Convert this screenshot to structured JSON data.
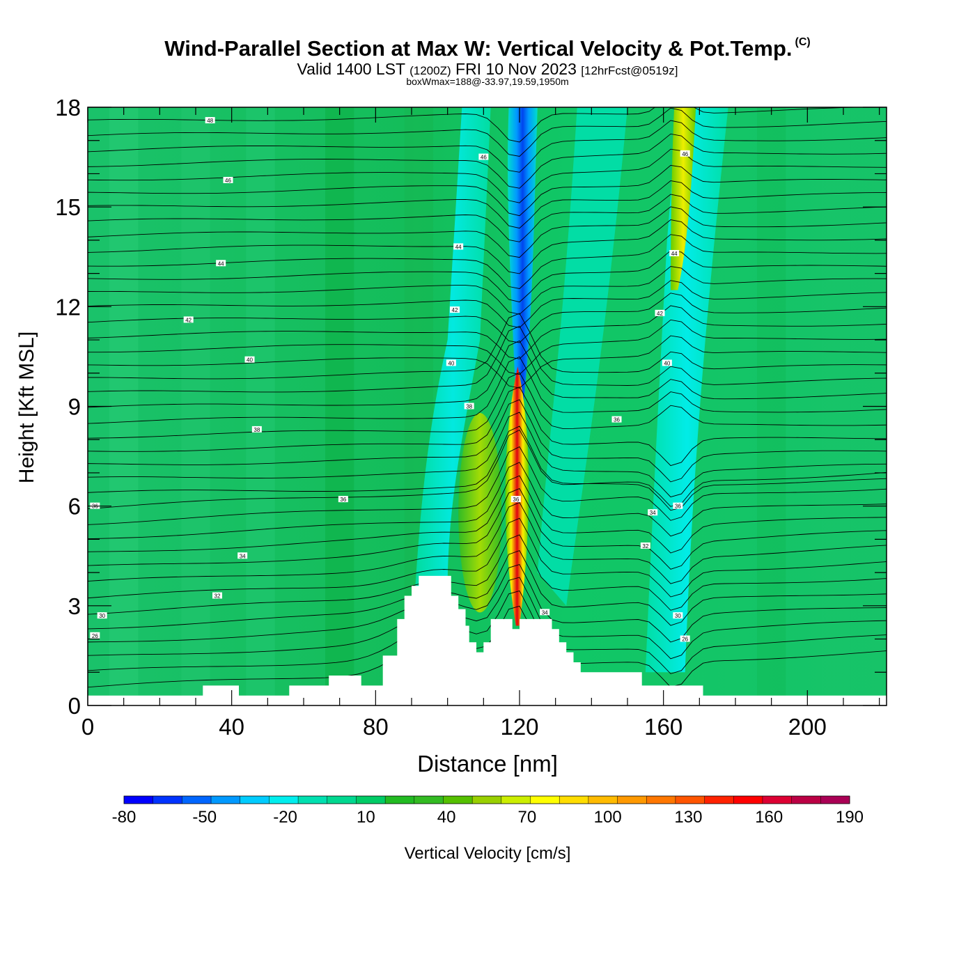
{
  "title": "Wind-Parallel Section at Max W: Vertical Velocity & Pot.Temp.",
  "copyright": "(C)",
  "subtitle": {
    "valid": "Valid 1400 LST",
    "utc": "(1200Z)",
    "date": "FRI 10 Nov 2023",
    "forecast": "[12hrFcst@0519z]"
  },
  "box_info": "boxWmax=188@-33.97,19.59,1950m",
  "chart_data": {
    "type": "heatmap",
    "xlabel": "Distance [nm]",
    "ylabel": "Height [Kft MSL]",
    "xlim": [
      0,
      222
    ],
    "ylim": [
      0,
      18
    ],
    "x_ticks": [
      0,
      40,
      80,
      120,
      160,
      200
    ],
    "y_ticks": [
      0,
      3,
      6,
      9,
      12,
      15,
      18
    ],
    "colorbar": {
      "label": "Vertical Velocity [cm/s]",
      "tick_values": [
        -80,
        -50,
        -20,
        10,
        40,
        70,
        100,
        130,
        160,
        190
      ],
      "colors": [
        "#0000ff",
        "#0033ff",
        "#0066ff",
        "#0099ff",
        "#00ccff",
        "#00eeee",
        "#00e0b0",
        "#00d890",
        "#00cc66",
        "#22bb22",
        "#33bb22",
        "#55c000",
        "#99d000",
        "#ccee00",
        "#ffff00",
        "#ffdd00",
        "#ffbb00",
        "#ff9900",
        "#ff7700",
        "#ff5500",
        "#ff2200",
        "#ff0000",
        "#dd0033",
        "#bb0044",
        "#aa0055"
      ]
    },
    "updraft_core": {
      "x": 119,
      "base_kft": 2.5,
      "top_kft": 10,
      "max_w": 188,
      "height_m": 1950
    },
    "downdraft_core": {
      "x": 120,
      "base_kft": 9,
      "top_kft": 18,
      "min_w": -80
    },
    "secondary_updraft": {
      "x": 165,
      "base_kft": 13,
      "top_kft": 18
    },
    "terrain": [
      [
        0,
        0.3
      ],
      [
        32,
        0.3
      ],
      [
        32,
        0.6
      ],
      [
        42,
        0.6
      ],
      [
        42,
        0.3
      ],
      [
        56,
        0.3
      ],
      [
        56,
        0.6
      ],
      [
        67,
        0.6
      ],
      [
        67,
        0.9
      ],
      [
        76,
        0.9
      ],
      [
        76,
        0.6
      ],
      [
        82,
        0.6
      ],
      [
        82,
        1.5
      ],
      [
        86,
        1.5
      ],
      [
        86,
        2.6
      ],
      [
        88,
        2.6
      ],
      [
        88,
        3.3
      ],
      [
        90,
        3.3
      ],
      [
        90,
        3.6
      ],
      [
        92,
        3.6
      ],
      [
        92,
        3.9
      ],
      [
        101,
        3.9
      ],
      [
        101,
        3.3
      ],
      [
        103,
        3.3
      ],
      [
        103,
        2.9
      ],
      [
        105,
        2.9
      ],
      [
        105,
        2.4
      ],
      [
        106,
        2.4
      ],
      [
        106,
        1.9
      ],
      [
        108,
        1.9
      ],
      [
        108,
        1.6
      ],
      [
        110,
        1.6
      ],
      [
        110,
        1.9
      ],
      [
        112,
        1.9
      ],
      [
        112,
        2.6
      ],
      [
        118,
        2.6
      ],
      [
        118,
        2.3
      ],
      [
        120,
        2.3
      ],
      [
        120,
        2.6
      ],
      [
        129,
        2.6
      ],
      [
        129,
        2.3
      ],
      [
        131,
        2.3
      ],
      [
        131,
        1.9
      ],
      [
        133,
        1.9
      ],
      [
        133,
        1.6
      ],
      [
        135,
        1.6
      ],
      [
        135,
        1.3
      ],
      [
        137,
        1.3
      ],
      [
        137,
        1.0
      ],
      [
        154,
        1.0
      ],
      [
        154,
        0.6
      ],
      [
        171,
        0.6
      ],
      [
        171,
        0.3
      ],
      [
        222,
        0.3
      ]
    ],
    "isentropes": [
      {
        "label": "26",
        "x": 2,
        "y": 2.1
      },
      {
        "label": "30",
        "x": 4,
        "y": 2.7
      },
      {
        "label": "32",
        "x": 36,
        "y": 3.3
      },
      {
        "label": "34",
        "x": 43,
        "y": 4.5
      },
      {
        "label": "36",
        "x": 2,
        "y": 6.0
      },
      {
        "label": "36",
        "x": 71,
        "y": 6.2
      },
      {
        "label": "38",
        "x": 47,
        "y": 8.3
      },
      {
        "label": "40",
        "x": 45,
        "y": 10.4
      },
      {
        "label": "42",
        "x": 28,
        "y": 11.6
      },
      {
        "label": "44",
        "x": 37,
        "y": 13.3
      },
      {
        "label": "46",
        "x": 39,
        "y": 15.8
      },
      {
        "label": "48",
        "x": 34,
        "y": 17.6
      },
      {
        "label": "46",
        "x": 110,
        "y": 16.5
      },
      {
        "label": "44",
        "x": 103,
        "y": 13.8
      },
      {
        "label": "42",
        "x": 102,
        "y": 11.9
      },
      {
        "label": "40",
        "x": 101,
        "y": 10.3
      },
      {
        "label": "38",
        "x": 106,
        "y": 9.0
      },
      {
        "label": "36",
        "x": 119,
        "y": 6.2
      },
      {
        "label": "34",
        "x": 127,
        "y": 2.8
      },
      {
        "label": "36",
        "x": 147,
        "y": 8.6
      },
      {
        "label": "34",
        "x": 157,
        "y": 5.8
      },
      {
        "label": "32",
        "x": 155,
        "y": 4.8
      },
      {
        "label": "36",
        "x": 164,
        "y": 6.0
      },
      {
        "label": "30",
        "x": 164,
        "y": 2.7
      },
      {
        "label": "26",
        "x": 166,
        "y": 2.0
      },
      {
        "label": "40",
        "x": 161,
        "y": 10.3
      },
      {
        "label": "42",
        "x": 159,
        "y": 11.8
      },
      {
        "label": "44",
        "x": 163,
        "y": 13.6
      },
      {
        "label": "46",
        "x": 166,
        "y": 16.6
      }
    ]
  }
}
